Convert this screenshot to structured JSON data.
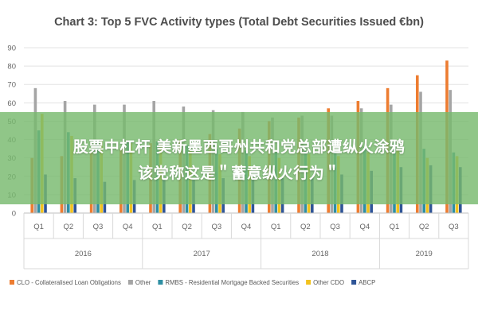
{
  "chart_data": {
    "type": "bar",
    "title": "Chart 3: Top 5 FVC Activity types (Total Debt Securities Issued €bn)",
    "xlabel": "",
    "ylabel": "",
    "ylim": [
      0,
      90
    ],
    "yticks": [
      0,
      10,
      20,
      30,
      40,
      50,
      60,
      70,
      80,
      90
    ],
    "grid": true,
    "legend_position": "bottom",
    "groups": [
      {
        "label": "2016",
        "quarters": [
          "Q1",
          "Q2",
          "Q3",
          "Q4"
        ]
      },
      {
        "label": "2017",
        "quarters": [
          "Q1",
          "Q2",
          "Q3",
          "Q4"
        ]
      },
      {
        "label": "2018",
        "quarters": [
          "Q1",
          "Q2",
          "Q3",
          "Q4"
        ]
      },
      {
        "label": "2019",
        "quarters": [
          "Q1",
          "Q2",
          "Q3"
        ]
      }
    ],
    "categories": [
      "Q1",
      "Q2",
      "Q3",
      "Q4",
      "Q1",
      "Q2",
      "Q3",
      "Q4",
      "Q1",
      "Q2",
      "Q3",
      "Q4",
      "Q1",
      "Q2",
      "Q3"
    ],
    "series": [
      {
        "name": "CLO - Collateralised Loan Obligations",
        "color": "#ed7d31",
        "values": [
          30,
          31,
          33,
          35,
          38,
          40,
          43,
          46,
          50,
          52,
          57,
          61,
          68,
          75,
          83
        ]
      },
      {
        "name": "Other",
        "color": "#a5a5a5",
        "values": [
          68,
          61,
          59,
          59,
          61,
          58,
          56,
          55,
          52,
          53,
          53,
          57,
          59,
          66,
          67
        ]
      },
      {
        "name": "RMBS - Residential Mortgage Backed Securities",
        "color": "#2e8fa3",
        "values": [
          45,
          44,
          40,
          39,
          39,
          37,
          35,
          34,
          33,
          34,
          33,
          36,
          38,
          35,
          33
        ]
      },
      {
        "name": "Other CDO",
        "color": "#f2c21e",
        "values": [
          54,
          42,
          40,
          38,
          37,
          34,
          32,
          31,
          30,
          32,
          31,
          33,
          35,
          30,
          31
        ]
      },
      {
        "name": "ABCP",
        "color": "#2f5597",
        "values": [
          21,
          19,
          17,
          18,
          19,
          18,
          19,
          18,
          19,
          20,
          21,
          23,
          25,
          26,
          25
        ]
      }
    ]
  },
  "overlay": {
    "line1": "股票中杠杆 美新墨西哥州共和党总部遭纵火涂鸦",
    "line2": "该党称这是＂蓄意纵火行为＂"
  }
}
